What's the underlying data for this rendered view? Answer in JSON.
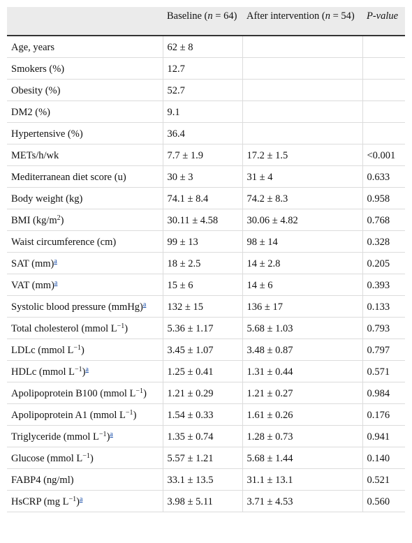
{
  "table": {
    "header": [
      [
        {
          "text": "Baseline ("
        },
        {
          "italic": "n"
        },
        {
          "text": " = 64)"
        }
      ],
      [
        {
          "text": "After intervention ("
        },
        {
          "italic": "n"
        },
        {
          "text": " = 54)"
        }
      ],
      [
        {
          "italic": "P-value"
        }
      ]
    ],
    "rows": [
      [
        "Age, years",
        "62 ± 8"
      ],
      [
        "Smokers (%)",
        "12.7"
      ],
      [
        "Obesity (%)",
        "52.7"
      ],
      [
        "DM2 (%)",
        "9.1"
      ],
      [
        "Hypertensive (%)",
        "36.4"
      ],
      [
        "METs/h/wk",
        "7.7 ± 1.9",
        "17.2 ± 1.5",
        "<0.001"
      ],
      [
        "Mediterranean diet score (u)",
        "30 ± 3",
        "31 ± 4",
        "0.633"
      ],
      [
        "Body weight (kg)",
        "74.1 ± 8.4",
        "74.2 ± 8.3",
        "0.958"
      ],
      [
        [
          {
            "text": "BMI (kg/m"
          },
          {
            "sup": "2"
          },
          {
            "text": ")"
          }
        ],
        "30.11 ± 4.58",
        "30.06 ± 4.82",
        "0.768"
      ],
      [
        "Waist circumference (cm)",
        "99 ± 13",
        "98 ± 14",
        "0.328"
      ],
      [
        [
          {
            "text": "SAT (mm)"
          },
          {
            "note": "a"
          }
        ],
        "18 ± 2.5",
        "14 ± 2.8",
        "0.205"
      ],
      [
        [
          {
            "text": "VAT (mm)"
          },
          {
            "note": "a"
          }
        ],
        "15 ± 6",
        "14 ± 6",
        "0.393"
      ],
      [
        [
          {
            "text": "Systolic blood pressure (mmHg)"
          },
          {
            "note": "a"
          }
        ],
        "132 ± 15",
        "136 ± 17",
        "0.133"
      ],
      [
        [
          {
            "text": "Total cholesterol (mmol L"
          },
          {
            "sup": "−1"
          },
          {
            "text": ")"
          }
        ],
        "5.36 ± 1.17",
        "5.68 ± 1.03",
        "0.793"
      ],
      [
        [
          {
            "text": "LDLc (mmol L"
          },
          {
            "sup": "−1"
          },
          {
            "text": ")"
          }
        ],
        "3.45 ± 1.07",
        "3.48 ± 0.87",
        "0.797"
      ],
      [
        [
          {
            "text": "HDLc (mmol L"
          },
          {
            "sup": "−1"
          },
          {
            "text": ")"
          },
          {
            "note": "a"
          }
        ],
        "1.25 ± 0.41",
        "1.31 ± 0.44",
        "0.571"
      ],
      [
        [
          {
            "text": "Apolipoprotein B100 (mmol L"
          },
          {
            "sup": "−1"
          },
          {
            "text": ")"
          }
        ],
        "1.21 ± 0.29",
        "1.21 ± 0.27",
        "0.984"
      ],
      [
        [
          {
            "text": "Apolipoprotein A1 (mmol L"
          },
          {
            "sup": "−1"
          },
          {
            "text": ")"
          }
        ],
        "1.54 ± 0.33",
        "1.61 ± 0.26",
        "0.176"
      ],
      [
        [
          {
            "text": "Triglyceride (mmol L"
          },
          {
            "sup": "−1"
          },
          {
            "text": ")"
          },
          {
            "note": "a"
          }
        ],
        "1.35 ± 0.74",
        "1.28 ± 0.73",
        "0.941"
      ],
      [
        [
          {
            "text": "Glucose (mmol L"
          },
          {
            "sup": "−1"
          },
          {
            "text": ")"
          }
        ],
        "5.57 ± 1.21",
        "5.68 ± 1.44",
        "0.140"
      ],
      [
        "FABP4 (ng/ml)",
        "33.1 ± 13.5",
        "31.1 ± 13.1",
        "0.521"
      ],
      [
        [
          {
            "text": "HsCRP (mg L"
          },
          {
            "sup": "−1"
          },
          {
            "text": ")"
          },
          {
            "note": "a"
          }
        ],
        "3.98 ± 5.11",
        "3.71 ± 4.53",
        "0.560"
      ]
    ]
  }
}
